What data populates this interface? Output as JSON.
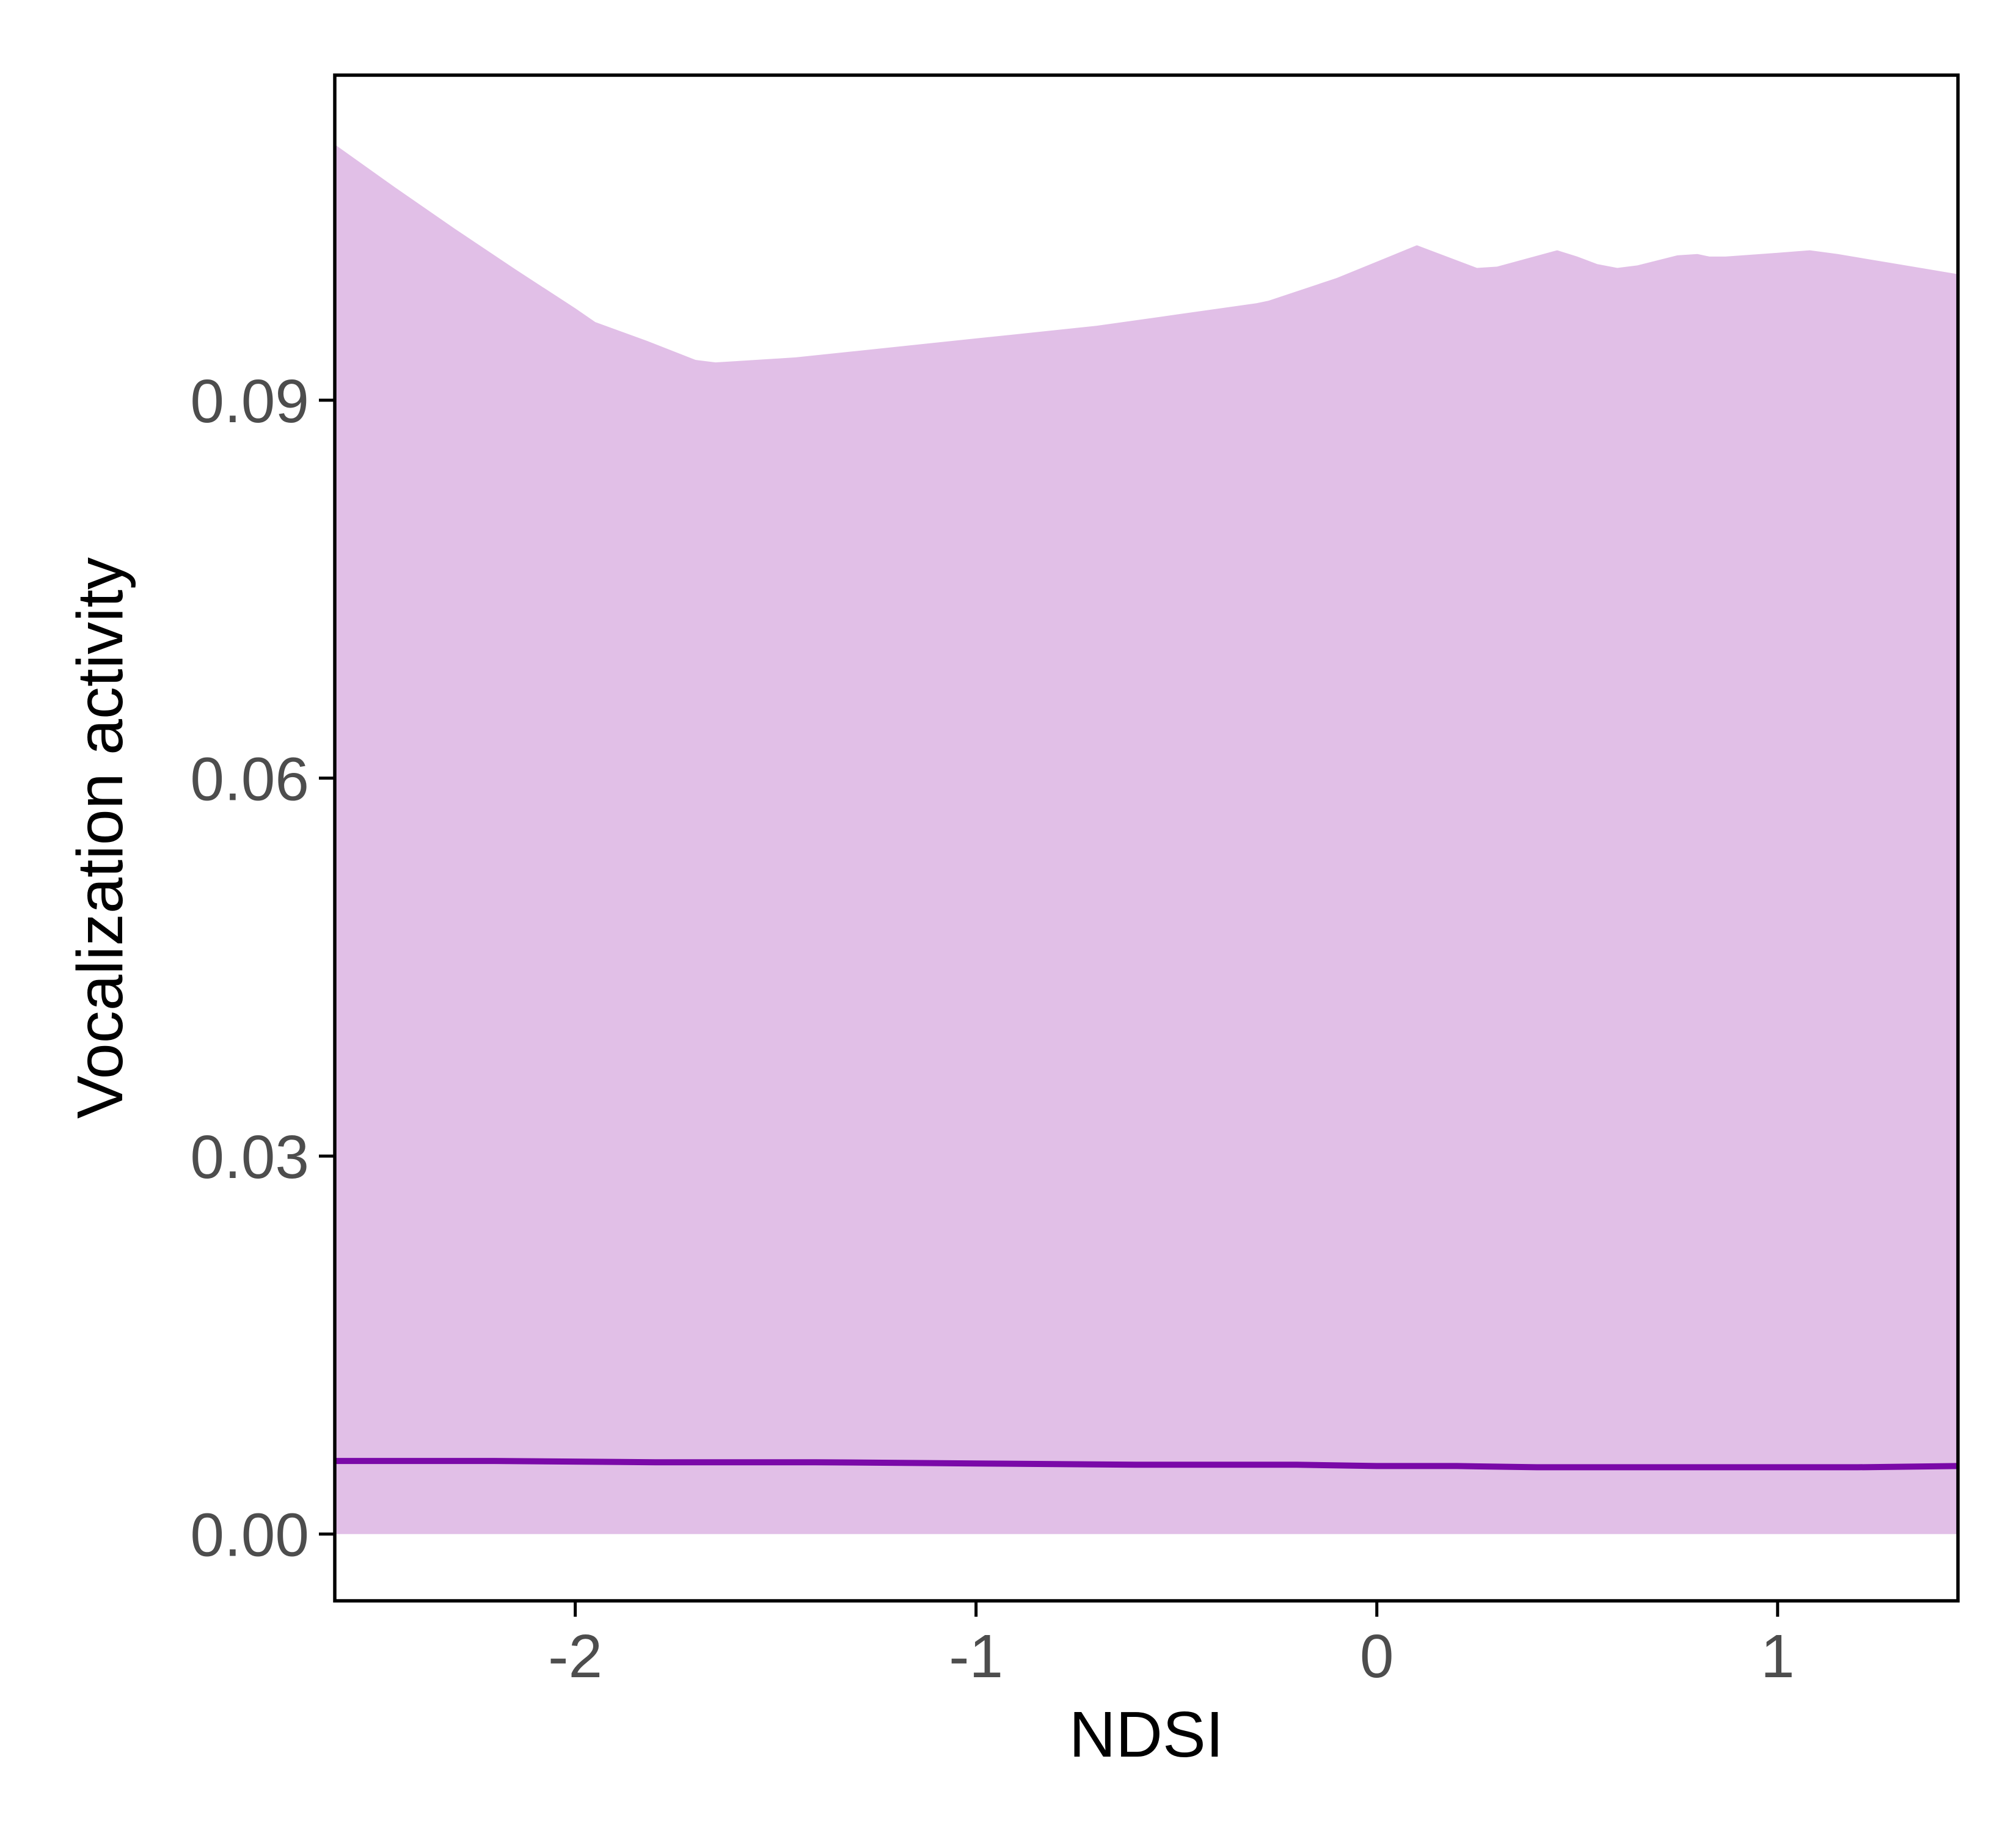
{
  "chart_data": {
    "type": "area",
    "title": "",
    "xlabel": "NDSI",
    "ylabel": "Vocalization activity",
    "xlim": [
      -2.6,
      1.45
    ],
    "ylim": [
      -0.0053,
      0.1158
    ],
    "x_ticks": [
      -2,
      -1,
      0,
      1
    ],
    "x_tick_labels": [
      "-2",
      "-1",
      "0",
      "1"
    ],
    "y_ticks": [
      0.0,
      0.03,
      0.06,
      0.09
    ],
    "y_tick_labels": [
      "0.00",
      "0.03",
      "0.06",
      "0.09"
    ],
    "grid": false,
    "legend": false,
    "series": [
      {
        "kind": "ribbon",
        "color": "#e1bfe7",
        "x": [
          -2.6,
          -2.45,
          -2.3,
          -2.15,
          -2.0,
          -1.95,
          -1.82,
          -1.7,
          -1.65,
          -1.6,
          -1.45,
          -1.3,
          -1.0,
          -0.7,
          -0.5,
          -0.3,
          -0.27,
          -0.1,
          0.0,
          0.1,
          0.2,
          0.25,
          0.3,
          0.45,
          0.5,
          0.55,
          0.6,
          0.65,
          0.75,
          0.8,
          0.83,
          0.87,
          1.0,
          1.08,
          1.15,
          1.3,
          1.45
        ],
        "upper": [
          0.1103,
          0.1069,
          0.1036,
          0.1004,
          0.0973,
          0.0962,
          0.0947,
          0.0932,
          0.093,
          0.0931,
          0.0934,
          0.0939,
          0.0949,
          0.0959,
          0.0968,
          0.0977,
          0.0979,
          0.0997,
          0.101,
          0.1023,
          0.1011,
          0.1005,
          0.1006,
          0.1019,
          0.1014,
          0.1008,
          0.1005,
          0.1007,
          0.1015,
          0.1016,
          0.1014,
          0.1014,
          0.1017,
          0.1019,
          0.1016,
          0.1008,
          0.1
        ],
        "lower": [
          0,
          0,
          0,
          0,
          0,
          0,
          0,
          0,
          0,
          0,
          0,
          0,
          0,
          0,
          0,
          0,
          0,
          0,
          0,
          0,
          0,
          0,
          0,
          0,
          0,
          0,
          0,
          0,
          0,
          0,
          0,
          0,
          0,
          0,
          0,
          0,
          0
        ]
      },
      {
        "kind": "line",
        "color": "#7a09a8",
        "x": [
          -2.6,
          -2.2,
          -1.8,
          -1.4,
          -1.0,
          -0.6,
          -0.2,
          0.0,
          0.2,
          0.4,
          0.6,
          0.8,
          1.0,
          1.2,
          1.45
        ],
        "y": [
          0.0058,
          0.0058,
          0.0057,
          0.0057,
          0.0056,
          0.0055,
          0.0055,
          0.0054,
          0.0054,
          0.0053,
          0.0053,
          0.0053,
          0.0053,
          0.0053,
          0.0054
        ]
      }
    ]
  }
}
